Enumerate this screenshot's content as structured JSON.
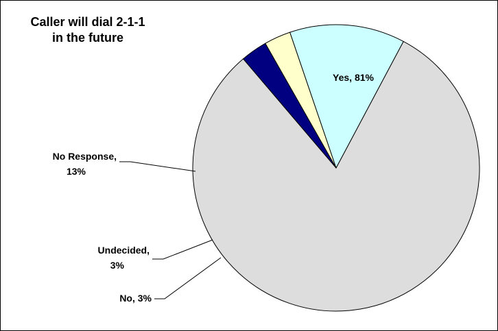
{
  "chart_data": {
    "type": "pie",
    "title_lines": [
      "Caller will dial 2-1-1",
      "in the future"
    ],
    "slices": [
      {
        "label": "Yes",
        "value": 81,
        "color": "#DDDDDD",
        "data_label": [
          "Yes, 81%"
        ]
      },
      {
        "label": "No",
        "value": 3,
        "color": "#000080",
        "data_label": [
          "No, 3%"
        ]
      },
      {
        "label": "Undecided",
        "value": 3,
        "color": "#FFFFCC",
        "data_label": [
          "Undecided,",
          "3%"
        ]
      },
      {
        "label": "No Response",
        "value": 13,
        "color": "#CCFFFF",
        "data_label": [
          "No Response,",
          "13%"
        ]
      }
    ]
  }
}
